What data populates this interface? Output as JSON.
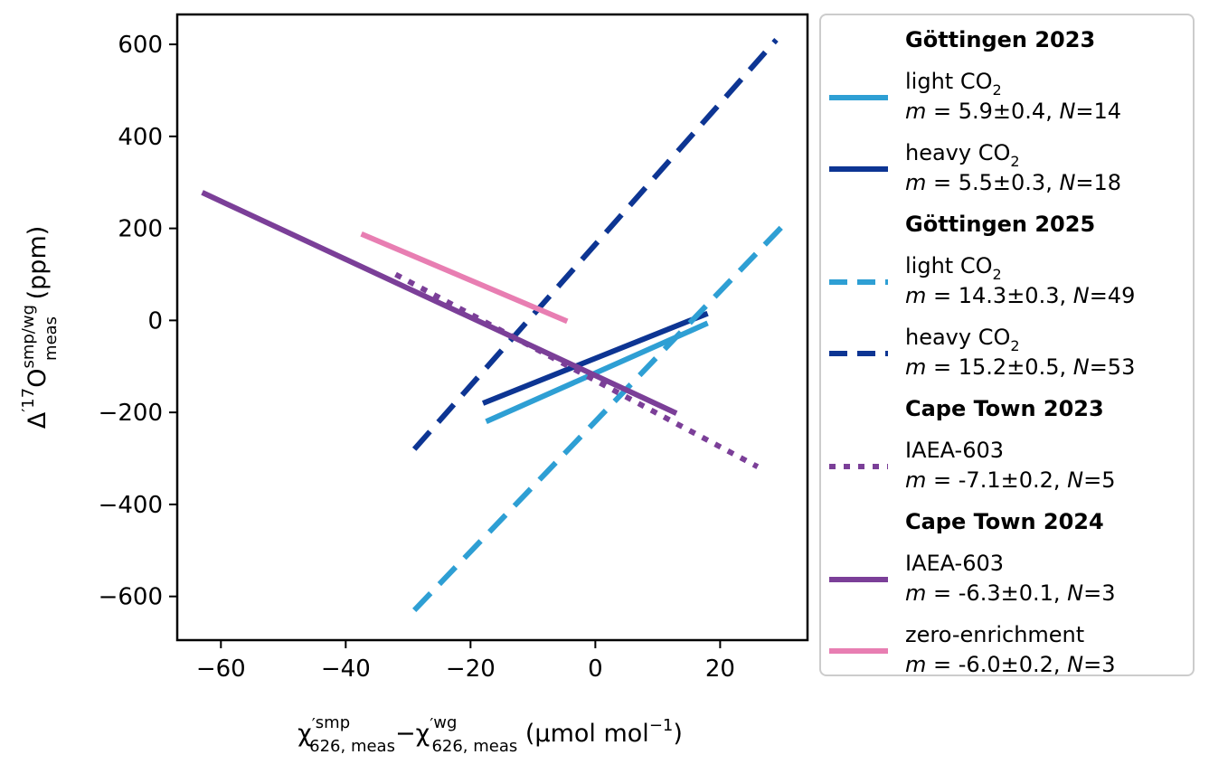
{
  "chart_data": {
    "type": "line",
    "xlabel": {
      "chi": "χ",
      "prime": "′",
      "sup_smp": "smp",
      "sub_smp": "626, meas",
      "minus": "−",
      "sup_wg": "wg",
      "sub_wg": "626, meas",
      "units_pre": " (µmol mol",
      "units_sup": "−1",
      "units_post": ")"
    },
    "ylabel": {
      "delta": "Δ",
      "prime": "′",
      "sup17": "17",
      "o": "O",
      "sup": "smp/wg",
      "sub": "meas",
      "units": " (ppm)"
    },
    "xlim": [
      -67,
      34
    ],
    "ylim": [
      -695,
      665
    ],
    "xticks": [
      -60,
      -40,
      -20,
      0,
      20
    ],
    "xtick_labels": [
      "−60",
      "−40",
      "−20",
      "0",
      "20"
    ],
    "yticks": [
      -600,
      -400,
      -200,
      0,
      200,
      400,
      600
    ],
    "ytick_labels": [
      "−600",
      "−400",
      "−200",
      "0",
      "200",
      "400",
      "600"
    ],
    "series": [
      {
        "group": "Göttingen 2023",
        "name": "light CO",
        "name_sub": "2",
        "m": "5.9±0.4",
        "N": "14",
        "color": "#2e9fd4",
        "style": "solid",
        "x": [
          -17.5,
          18
        ],
        "y": [
          -220,
          -6
        ]
      },
      {
        "group": "Göttingen 2023",
        "name": "heavy CO",
        "name_sub": "2",
        "m": "5.5±0.3",
        "N": "18",
        "color": "#0d3593",
        "style": "solid",
        "x": [
          -18,
          18
        ],
        "y": [
          -180,
          15
        ]
      },
      {
        "group": "Göttingen 2025",
        "name": "light CO",
        "name_sub": "2",
        "m": "14.3±0.3",
        "N": "49",
        "color": "#2e9fd4",
        "style": "dashed",
        "x": [
          -29,
          30
        ],
        "y": [
          -630,
          205
        ]
      },
      {
        "group": "Göttingen 2025",
        "name": "heavy CO",
        "name_sub": "2",
        "m": "15.2±0.5",
        "N": "53",
        "color": "#0d3593",
        "style": "dashed",
        "x": [
          -29,
          29
        ],
        "y": [
          -280,
          610
        ]
      },
      {
        "group": "Cape Town 2023",
        "name": "IAEA-603",
        "name_sub": "",
        "m": "-7.1±0.2",
        "N": "5",
        "color": "#7b3f98",
        "style": "dotted",
        "x": [
          -32,
          26
        ],
        "y": [
          100,
          -318
        ]
      },
      {
        "group": "Cape Town 2024",
        "name": "IAEA-603",
        "name_sub": "",
        "m": "-6.3±0.1",
        "N": "3",
        "color": "#7b3f98",
        "style": "solid",
        "x": [
          -63,
          13
        ],
        "y": [
          278,
          -202
        ]
      },
      {
        "group": "Cape Town 2024",
        "name": "zero-enrichment",
        "name_sub": "",
        "m": "-6.0±0.2",
        "N": "3",
        "color": "#e87eb2",
        "style": "solid",
        "x": [
          -37.5,
          -4.5
        ],
        "y": [
          188,
          -2
        ]
      }
    ],
    "legend": {
      "position": "outside-right",
      "m_prefix": "m",
      "m_eq": " = ",
      "n_sep": ", ",
      "n_prefix": "N",
      "n_eq": "=",
      "groups": [
        {
          "title": "Göttingen 2023",
          "series": [
            0,
            1
          ]
        },
        {
          "title": "Göttingen 2025",
          "series": [
            2,
            3
          ]
        },
        {
          "title": "Cape Town 2023",
          "series": [
            4
          ]
        },
        {
          "title": "Cape Town 2024",
          "series": [
            5,
            6
          ]
        }
      ]
    }
  }
}
